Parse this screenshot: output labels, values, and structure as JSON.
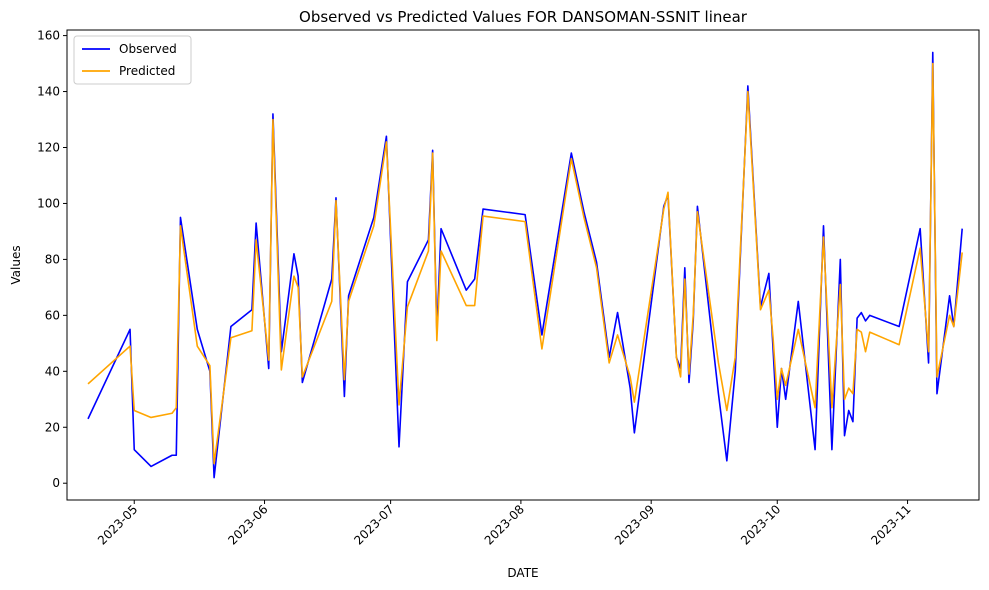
{
  "chart_data": {
    "type": "line",
    "title": "Observed vs Predicted Values FOR DANSOMAN-SSNIT  linear",
    "xlabel": "DATE",
    "ylabel": "Values",
    "x_axis_type": "date",
    "xlim": [
      "2023-04-15",
      "2023-11-18"
    ],
    "ylim": [
      -6,
      162
    ],
    "x_ticks": [
      "2023-05-01",
      "2023-06-01",
      "2023-07-01",
      "2023-08-01",
      "2023-09-01",
      "2023-10-01",
      "2023-11-01"
    ],
    "x_tick_labels": [
      "2023-05",
      "2023-06",
      "2023-07",
      "2023-08",
      "2023-09",
      "2023-10",
      "2023-11"
    ],
    "y_ticks": [
      0,
      20,
      40,
      60,
      80,
      100,
      120,
      140,
      160
    ],
    "grid": false,
    "legend": {
      "position": "top-left"
    },
    "series": [
      {
        "name": "Observed",
        "color": "#0000ff",
        "points": [
          [
            "2023-04-20",
            23
          ],
          [
            "2023-04-30",
            55
          ],
          [
            "2023-05-01",
            12
          ],
          [
            "2023-05-05",
            6
          ],
          [
            "2023-05-10",
            10
          ],
          [
            "2023-05-11",
            10
          ],
          [
            "2023-05-12",
            95
          ],
          [
            "2023-05-16",
            55
          ],
          [
            "2023-05-19",
            40
          ],
          [
            "2023-05-20",
            2
          ],
          [
            "2023-05-24",
            56
          ],
          [
            "2023-05-29",
            62
          ],
          [
            "2023-05-30",
            93
          ],
          [
            "2023-06-02",
            41
          ],
          [
            "2023-06-03",
            132
          ],
          [
            "2023-06-05",
            47
          ],
          [
            "2023-06-08",
            82
          ],
          [
            "2023-06-09",
            74
          ],
          [
            "2023-06-10",
            36
          ],
          [
            "2023-06-17",
            73
          ],
          [
            "2023-06-18",
            102
          ],
          [
            "2023-06-20",
            31
          ],
          [
            "2023-06-21",
            67
          ],
          [
            "2023-06-27",
            95
          ],
          [
            "2023-06-30",
            124
          ],
          [
            "2023-07-03",
            13
          ],
          [
            "2023-07-05",
            72
          ],
          [
            "2023-07-10",
            87
          ],
          [
            "2023-07-11",
            119
          ],
          [
            "2023-07-12",
            54
          ],
          [
            "2023-07-13",
            91
          ],
          [
            "2023-07-19",
            69
          ],
          [
            "2023-07-21",
            73
          ],
          [
            "2023-07-23",
            98
          ],
          [
            "2023-08-02",
            96
          ],
          [
            "2023-08-06",
            53
          ],
          [
            "2023-08-13",
            118
          ],
          [
            "2023-08-16",
            97
          ],
          [
            "2023-08-19",
            79
          ],
          [
            "2023-08-22",
            45
          ],
          [
            "2023-08-24",
            61
          ],
          [
            "2023-08-27",
            34
          ],
          [
            "2023-08-28",
            18
          ],
          [
            "2023-09-04",
            99
          ],
          [
            "2023-09-05",
            103
          ],
          [
            "2023-09-07",
            45
          ],
          [
            "2023-09-08",
            41
          ],
          [
            "2023-09-09",
            77
          ],
          [
            "2023-09-10",
            36
          ],
          [
            "2023-09-11",
            58
          ],
          [
            "2023-09-12",
            99
          ],
          [
            "2023-09-17",
            32
          ],
          [
            "2023-09-19",
            8
          ],
          [
            "2023-09-21",
            40
          ],
          [
            "2023-09-24",
            142
          ],
          [
            "2023-09-27",
            63
          ],
          [
            "2023-09-29",
            75
          ],
          [
            "2023-09-30",
            48
          ],
          [
            "2023-10-01",
            20
          ],
          [
            "2023-10-02",
            41
          ],
          [
            "2023-10-03",
            30
          ],
          [
            "2023-10-06",
            65
          ],
          [
            "2023-10-10",
            12
          ],
          [
            "2023-10-12",
            92
          ],
          [
            "2023-10-14",
            12
          ],
          [
            "2023-10-16",
            80
          ],
          [
            "2023-10-17",
            17
          ],
          [
            "2023-10-18",
            26
          ],
          [
            "2023-10-19",
            22
          ],
          [
            "2023-10-20",
            59
          ],
          [
            "2023-10-21",
            61
          ],
          [
            "2023-10-22",
            58
          ],
          [
            "2023-10-23",
            60
          ],
          [
            "2023-10-30",
            56
          ],
          [
            "2023-11-04",
            91
          ],
          [
            "2023-11-06",
            43
          ],
          [
            "2023-11-07",
            154
          ],
          [
            "2023-11-08",
            32
          ],
          [
            "2023-11-11",
            67
          ],
          [
            "2023-11-12",
            56
          ],
          [
            "2023-11-14",
            91
          ]
        ]
      },
      {
        "name": "Predicted",
        "color": "#ffa500",
        "points": [
          [
            "2023-04-20",
            35.5
          ],
          [
            "2023-04-30",
            49
          ],
          [
            "2023-05-01",
            26
          ],
          [
            "2023-05-05",
            23.5
          ],
          [
            "2023-05-10",
            25
          ],
          [
            "2023-05-11",
            27
          ],
          [
            "2023-05-12",
            92
          ],
          [
            "2023-05-16",
            49
          ],
          [
            "2023-05-19",
            42
          ],
          [
            "2023-05-20",
            7
          ],
          [
            "2023-05-24",
            52
          ],
          [
            "2023-05-29",
            54.5
          ],
          [
            "2023-05-30",
            87
          ],
          [
            "2023-06-02",
            44
          ],
          [
            "2023-06-03",
            130
          ],
          [
            "2023-06-05",
            40.5
          ],
          [
            "2023-06-08",
            74
          ],
          [
            "2023-06-09",
            70
          ],
          [
            "2023-06-10",
            38
          ],
          [
            "2023-06-17",
            65
          ],
          [
            "2023-06-18",
            101
          ],
          [
            "2023-06-20",
            37
          ],
          [
            "2023-06-21",
            65
          ],
          [
            "2023-06-27",
            92
          ],
          [
            "2023-06-30",
            122
          ],
          [
            "2023-07-03",
            28
          ],
          [
            "2023-07-05",
            63
          ],
          [
            "2023-07-10",
            83
          ],
          [
            "2023-07-11",
            118
          ],
          [
            "2023-07-12",
            51
          ],
          [
            "2023-07-13",
            83
          ],
          [
            "2023-07-19",
            63.5
          ],
          [
            "2023-07-21",
            63.5
          ],
          [
            "2023-07-23",
            95.5
          ],
          [
            "2023-08-02",
            93.5
          ],
          [
            "2023-08-06",
            48
          ],
          [
            "2023-08-13",
            116
          ],
          [
            "2023-08-16",
            95
          ],
          [
            "2023-08-19",
            77
          ],
          [
            "2023-08-22",
            43
          ],
          [
            "2023-08-24",
            53
          ],
          [
            "2023-08-27",
            38
          ],
          [
            "2023-08-28",
            29
          ],
          [
            "2023-09-04",
            98
          ],
          [
            "2023-09-05",
            104
          ],
          [
            "2023-09-07",
            45
          ],
          [
            "2023-09-08",
            38
          ],
          [
            "2023-09-09",
            73
          ],
          [
            "2023-09-10",
            39
          ],
          [
            "2023-09-11",
            60
          ],
          [
            "2023-09-12",
            97
          ],
          [
            "2023-09-17",
            43
          ],
          [
            "2023-09-19",
            26
          ],
          [
            "2023-09-21",
            45
          ],
          [
            "2023-09-24",
            140
          ],
          [
            "2023-09-27",
            62
          ],
          [
            "2023-09-29",
            69
          ],
          [
            "2023-09-30",
            52
          ],
          [
            "2023-10-01",
            30
          ],
          [
            "2023-10-02",
            41
          ],
          [
            "2023-10-03",
            35
          ],
          [
            "2023-10-06",
            55
          ],
          [
            "2023-10-10",
            27
          ],
          [
            "2023-10-12",
            88
          ],
          [
            "2023-10-14",
            27
          ],
          [
            "2023-10-16",
            71
          ],
          [
            "2023-10-17",
            30
          ],
          [
            "2023-10-18",
            34
          ],
          [
            "2023-10-19",
            32
          ],
          [
            "2023-10-20",
            55
          ],
          [
            "2023-10-21",
            54
          ],
          [
            "2023-10-22",
            47
          ],
          [
            "2023-10-23",
            54
          ],
          [
            "2023-10-30",
            49.5
          ],
          [
            "2023-11-04",
            84
          ],
          [
            "2023-11-06",
            47
          ],
          [
            "2023-11-07",
            150
          ],
          [
            "2023-11-08",
            38
          ],
          [
            "2023-11-11",
            60
          ],
          [
            "2023-11-12",
            56
          ],
          [
            "2023-11-14",
            82.5
          ]
        ]
      }
    ]
  }
}
